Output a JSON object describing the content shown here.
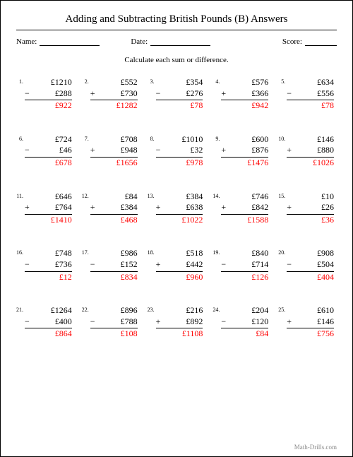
{
  "title": "Adding and Subtracting British Pounds (B) Answers",
  "labels": {
    "name": "Name:",
    "date": "Date:",
    "score": "Score:"
  },
  "instruction": "Calculate each sum or difference.",
  "footer": "Math-Drills.com",
  "currency": "£",
  "answer_color": "#ff0000",
  "text_color": "#000000",
  "background_color": "#ffffff",
  "font_family": "Times New Roman",
  "problems": [
    {
      "n": "1.",
      "a": 1210,
      "op": "−",
      "b": 288,
      "ans": 922
    },
    {
      "n": "2.",
      "a": 552,
      "op": "+",
      "b": 730,
      "ans": 1282
    },
    {
      "n": "3.",
      "a": 354,
      "op": "−",
      "b": 276,
      "ans": 78
    },
    {
      "n": "4.",
      "a": 576,
      "op": "+",
      "b": 366,
      "ans": 942
    },
    {
      "n": "5.",
      "a": 634,
      "op": "−",
      "b": 556,
      "ans": 78
    },
    {
      "n": "6.",
      "a": 724,
      "op": "−",
      "b": 46,
      "ans": 678
    },
    {
      "n": "7.",
      "a": 708,
      "op": "+",
      "b": 948,
      "ans": 1656
    },
    {
      "n": "8.",
      "a": 1010,
      "op": "−",
      "b": 32,
      "ans": 978
    },
    {
      "n": "9.",
      "a": 600,
      "op": "+",
      "b": 876,
      "ans": 1476
    },
    {
      "n": "10.",
      "a": 146,
      "op": "+",
      "b": 880,
      "ans": 1026
    },
    {
      "n": "11.",
      "a": 646,
      "op": "+",
      "b": 764,
      "ans": 1410
    },
    {
      "n": "12.",
      "a": 84,
      "op": "+",
      "b": 384,
      "ans": 468
    },
    {
      "n": "13.",
      "a": 384,
      "op": "+",
      "b": 638,
      "ans": 1022
    },
    {
      "n": "14.",
      "a": 746,
      "op": "+",
      "b": 842,
      "ans": 1588
    },
    {
      "n": "15.",
      "a": 10,
      "op": "+",
      "b": 26,
      "ans": 36
    },
    {
      "n": "16.",
      "a": 748,
      "op": "−",
      "b": 736,
      "ans": 12
    },
    {
      "n": "17.",
      "a": 986,
      "op": "−",
      "b": 152,
      "ans": 834
    },
    {
      "n": "18.",
      "a": 518,
      "op": "+",
      "b": 442,
      "ans": 960
    },
    {
      "n": "19.",
      "a": 840,
      "op": "−",
      "b": 714,
      "ans": 126
    },
    {
      "n": "20.",
      "a": 908,
      "op": "−",
      "b": 504,
      "ans": 404
    },
    {
      "n": "21.",
      "a": 1264,
      "op": "−",
      "b": 400,
      "ans": 864
    },
    {
      "n": "22.",
      "a": 896,
      "op": "−",
      "b": 788,
      "ans": 108
    },
    {
      "n": "23.",
      "a": 216,
      "op": "+",
      "b": 892,
      "ans": 1108
    },
    {
      "n": "24.",
      "a": 204,
      "op": "−",
      "b": 120,
      "ans": 84
    },
    {
      "n": "25.",
      "a": 610,
      "op": "+",
      "b": 146,
      "ans": 756
    }
  ]
}
